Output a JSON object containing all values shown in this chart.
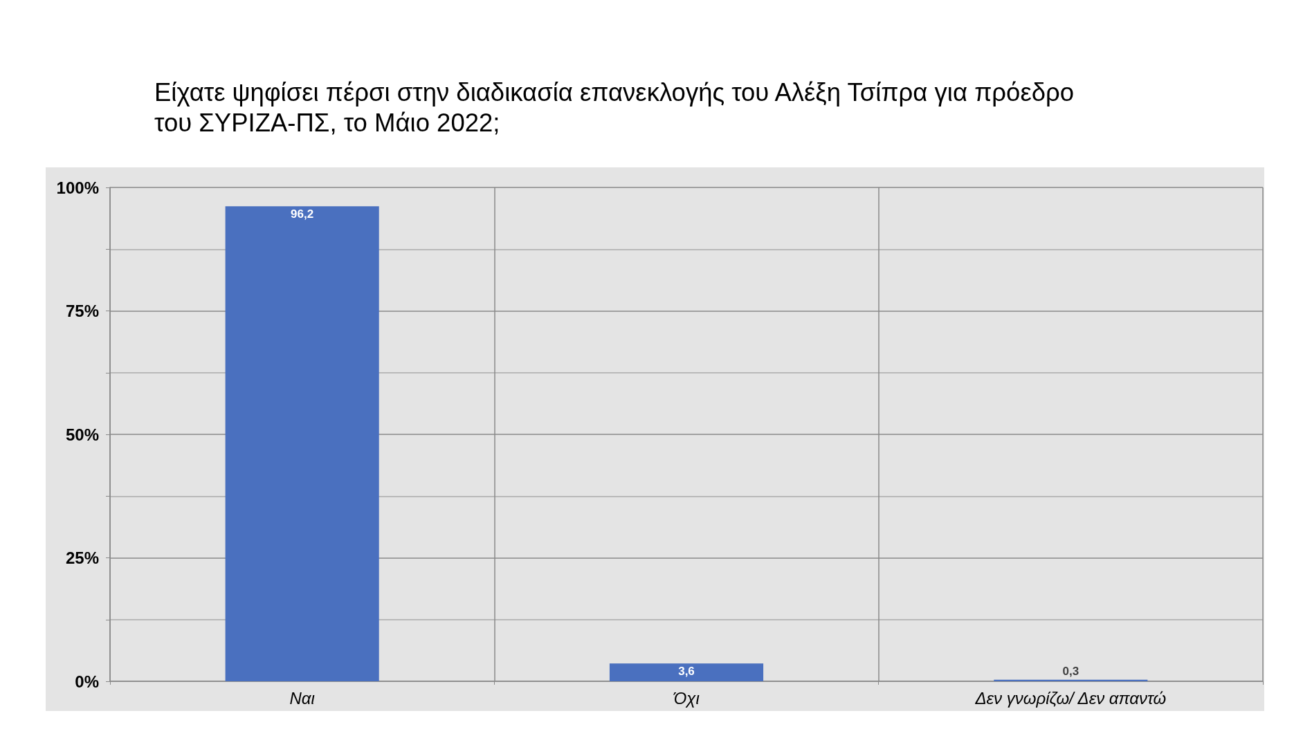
{
  "chart_data": {
    "type": "bar",
    "title": "Είχατε ψηφίσει πέρσι στην διαδικασία επανεκλογής του Αλέξη Τσίπρα για πρόεδρο του ΣΥΡΙΖΑ-ΠΣ, το Μάιο 2022;",
    "categories": [
      "Ναι",
      "Όχι",
      "Δεν γνωρίζω/ Δεν απαντώ"
    ],
    "values": [
      96.2,
      3.6,
      0.3
    ],
    "value_labels": [
      "96,2",
      "3,6",
      "0,3"
    ],
    "color": "#4a70bf",
    "ylim": [
      0,
      100
    ],
    "yticks": [
      {
        "value": 0,
        "label": "0%"
      },
      {
        "value": 12.5,
        "label": null
      },
      {
        "value": 25,
        "label": "25%"
      },
      {
        "value": 37.5,
        "label": null
      },
      {
        "value": 50,
        "label": "50%"
      },
      {
        "value": 62.5,
        "label": null
      },
      {
        "value": 75,
        "label": "75%"
      },
      {
        "value": 87.5,
        "label": null
      },
      {
        "value": 100,
        "label": "100%"
      }
    ],
    "grid": true
  }
}
